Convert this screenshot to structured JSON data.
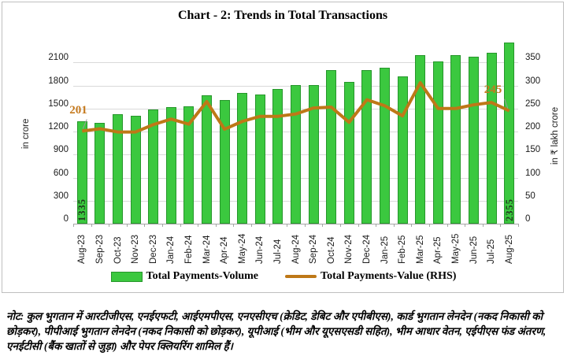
{
  "title": "Chart - 2: Trends in Total Transactions",
  "legend": {
    "volume_label": "Total Payments-Volume",
    "value_label": "Total Payments-Value (RHS)"
  },
  "colors": {
    "bar_fill": "#3bc83f",
    "bar_border": "#26962b",
    "line": "#be7817",
    "annotation": "#c5791d",
    "bar_label": "#203a1e",
    "grid": "#d9d9d9",
    "border": "#bfbfbf"
  },
  "chart_data": {
    "type": "bar",
    "subtype": "bar+line-combo",
    "categories": [
      "Aug-23",
      "Sep-23",
      "Oct-23",
      "Nov-23",
      "Dec-23",
      "Jan-24",
      "Feb-24",
      "Mar-24",
      "Apr-24",
      "May-24",
      "Jun-24",
      "Jul-24",
      "Aug-24",
      "Sep-24",
      "Oct-24",
      "Nov-24",
      "Dec-24",
      "Jan-25",
      "Feb-25",
      "Mar-25",
      "Apr-25",
      "May-25",
      "Jun-25",
      "Jul-25",
      "Aug-25"
    ],
    "series": [
      {
        "name": "Total Payments-Volume",
        "type": "bar",
        "axis": "left",
        "values": [
          1335,
          1310,
          1425,
          1405,
          1485,
          1515,
          1525,
          1670,
          1615,
          1705,
          1680,
          1750,
          1805,
          1805,
          2000,
          1850,
          1995,
          2030,
          1920,
          2195,
          2115,
          2200,
          2175,
          2225,
          2355
        ]
      },
      {
        "name": "Total Payments-Value (RHS)",
        "type": "line",
        "axis": "right",
        "values": [
          201,
          206,
          199,
          199,
          215,
          227,
          216,
          265,
          205,
          222,
          233,
          233,
          238,
          251,
          253,
          220,
          269,
          256,
          234,
          306,
          250,
          250,
          258,
          263,
          245
        ]
      }
    ],
    "left_axis": {
      "title": "in crore",
      "ticks": [
        0,
        300,
        600,
        900,
        1200,
        1500,
        1800,
        2100
      ],
      "plot_max": 2400
    },
    "right_axis": {
      "title": "in ₹ lakh crore",
      "ticks": [
        0,
        50,
        100,
        150,
        200,
        250,
        300,
        350
      ],
      "plot_max": 400
    },
    "data_labels": [
      {
        "series": "line",
        "category": "Aug-23",
        "text": "201"
      },
      {
        "series": "line",
        "category": "Aug-25",
        "text": "245"
      },
      {
        "series": "bar",
        "category": "Aug-23",
        "text": "1335"
      },
      {
        "series": "bar",
        "category": "Aug-25",
        "text": "2355"
      }
    ],
    "grid": true,
    "legend_position": "bottom"
  },
  "note": "नोट: कुल भुगतान में आरटीजीएस, एनईएफटी, आईएमपीएस, एनएसीएच (क्रेडिट, डेबिट और एपीबीएस), कार्ड भुगतान लेनदेन (नकद निकासी को छोड़कर), पीपीआई भुगतान लेनदेन (नकद निकासी को छोड़कर), यूपीआई (भीम और यूएसएसडी सहित), भीम आधार वेतन, एईपीएस फंड अंतरण, एनईटीसी (बैंक खातों से जुड़ा) और पेपर क्लियरिंग शामिल हैं।"
}
